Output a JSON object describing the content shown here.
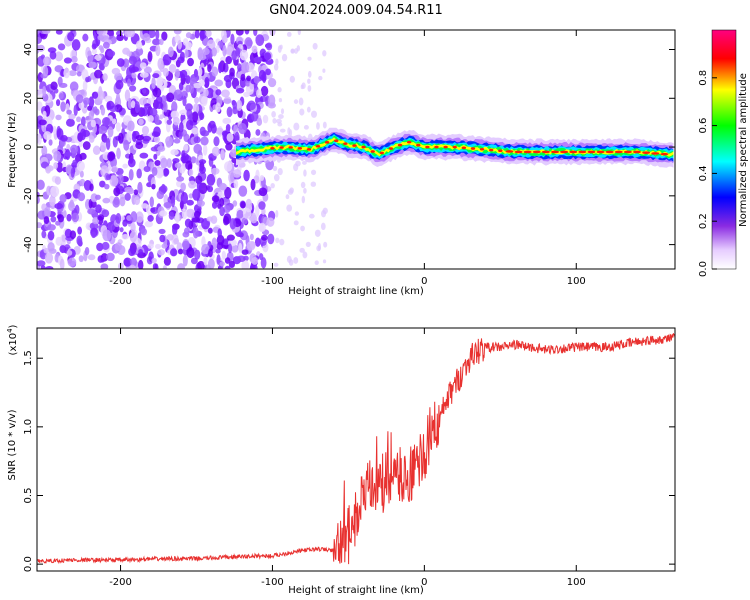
{
  "title": "GN04.2024.009.04.54.R11",
  "chart_data": [
    {
      "type": "heatmap",
      "xlabel": "Height of straight line (km)",
      "ylabel": "Frequency (Hz)",
      "xlim": [
        -255,
        165
      ],
      "ylim": [
        -50,
        48
      ],
      "xticks": [
        -200,
        -100,
        0,
        100
      ],
      "yticks": [
        -40,
        -20,
        0,
        20,
        40
      ],
      "colorbar": {
        "label": "Normalized spectral amplitude",
        "range": [
          0,
          1
        ],
        "ticks": [
          "0.0",
          "0.2",
          "0.4",
          "0.6",
          "0.8"
        ],
        "colormap": [
          "#ffffff",
          "#e6ccff",
          "#8a2be2",
          "#0000ff",
          "#00ffff",
          "#00ff00",
          "#ffff00",
          "#ff0000",
          "#ff0080"
        ]
      },
      "ridge": [
        {
          "x": -124,
          "f": -2
        },
        {
          "x": -110,
          "f": -1
        },
        {
          "x": -90,
          "f": 0
        },
        {
          "x": -75,
          "f": -1
        },
        {
          "x": -60,
          "f": 3
        },
        {
          "x": -50,
          "f": 1
        },
        {
          "x": -40,
          "f": 0
        },
        {
          "x": -30,
          "f": -3
        },
        {
          "x": -20,
          "f": 0
        },
        {
          "x": -10,
          "f": 2
        },
        {
          "x": 0,
          "f": 0
        },
        {
          "x": 20,
          "f": 0
        },
        {
          "x": 40,
          "f": -1
        },
        {
          "x": 60,
          "f": -2
        },
        {
          "x": 100,
          "f": -2
        },
        {
          "x": 140,
          "f": -2
        },
        {
          "x": 160,
          "f": -3
        }
      ]
    },
    {
      "type": "line",
      "xlabel": "Height of straight line (km)",
      "ylabel": "SNR (10 * v/v)",
      "y_multiplier": "(x10",
      "y_multiplier_exp": "4",
      "y_multiplier_close": ")",
      "xlim": [
        -255,
        165
      ],
      "ylim": [
        -0.05,
        1.72
      ],
      "xticks": [
        -200,
        -100,
        0,
        100
      ],
      "yticks": [
        "0.0",
        "0.5",
        "1.0",
        "1.5"
      ],
      "color": "#e8312f",
      "x": [
        -255,
        -230,
        -200,
        -170,
        -150,
        -130,
        -110,
        -100,
        -90,
        -80,
        -70,
        -60,
        -55,
        -50,
        -45,
        -40,
        -35,
        -30,
        -25,
        -20,
        -15,
        -10,
        -5,
        0,
        5,
        10,
        15,
        20,
        25,
        30,
        35,
        40,
        50,
        60,
        80,
        100,
        120,
        140,
        165
      ],
      "y": [
        0.02,
        0.03,
        0.03,
        0.04,
        0.04,
        0.05,
        0.06,
        0.06,
        0.08,
        0.1,
        0.11,
        0.1,
        0.12,
        0.2,
        0.35,
        0.5,
        0.55,
        0.58,
        0.6,
        0.62,
        0.64,
        0.66,
        0.7,
        0.8,
        0.95,
        1.05,
        1.2,
        1.3,
        1.4,
        1.5,
        1.55,
        1.58,
        1.58,
        1.6,
        1.56,
        1.58,
        1.58,
        1.62,
        1.65
      ]
    }
  ]
}
